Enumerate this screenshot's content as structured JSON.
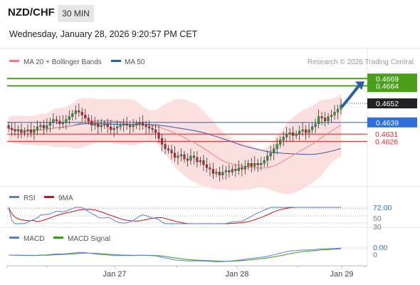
{
  "header": {
    "pair": "NZD/CHF",
    "interval": "30 MIN",
    "datetime": "Wednesday, January 28, 2026 9:20:57 PM CET"
  },
  "legend": {
    "ma20_label": "MA 20 + Bollinger Bands",
    "ma50_label": "MA 50",
    "ma20_color": "#f08080",
    "ma50_color": "#2e5aa0",
    "copyright": "Research © 2026 Trading Central"
  },
  "rsi_panel": {
    "rsi_label": "RSI",
    "ma9_label": "9MA",
    "rsi_color": "#5b7fd6",
    "ma9_color": "#d01010",
    "levels": [
      "72.00",
      "70",
      "50",
      "30"
    ]
  },
  "macd_panel": {
    "macd_label": "MACD",
    "signal_label": "MACD Signal",
    "macd_color": "#5b7fd6",
    "signal_color": "#3a9a1a",
    "value_label": "0.00",
    "zero_label": "0"
  },
  "chart_data": {
    "type": "candlestick",
    "symbol": "NZD/CHF",
    "interval": "30 MIN",
    "x_tick_labels": [
      "Jan 27",
      "Jan 28",
      "Jan 29"
    ],
    "ylim": [
      0.4596,
      0.4674
    ],
    "levels": [
      {
        "label": "0.4669",
        "value": 0.4669,
        "kind": "resistance",
        "color": "#4aa01a"
      },
      {
        "label": "0.4664",
        "value": 0.4664,
        "kind": "resistance",
        "color": "#4aa01a"
      },
      {
        "label": "0.4652",
        "value": 0.4652,
        "kind": "last-price",
        "color": "#222222"
      },
      {
        "label": "0.4639",
        "value": 0.4639,
        "kind": "pivot",
        "color": "#2f6fdc"
      },
      {
        "label": "0.4631",
        "value": 0.4631,
        "kind": "support",
        "color": "#e03030"
      },
      {
        "label": "0.4626",
        "value": 0.4626,
        "kind": "support",
        "color": "#e03030"
      }
    ],
    "close_series": [
      0.4635,
      0.4634,
      0.4633,
      0.4634,
      0.4632,
      0.4633,
      0.4634,
      0.4632,
      0.4634,
      0.4636,
      0.4637,
      0.4635,
      0.4637,
      0.4639,
      0.4641,
      0.464,
      0.4638,
      0.4639,
      0.4641,
      0.4643,
      0.4645,
      0.4647,
      0.4646,
      0.4644,
      0.4642,
      0.464,
      0.4637,
      0.4638,
      0.4636,
      0.4637,
      0.4638,
      0.4636,
      0.4634,
      0.4635,
      0.4636,
      0.4637,
      0.4638,
      0.4637,
      0.4636,
      0.4637,
      0.4638,
      0.4639,
      0.4637,
      0.4636,
      0.4635,
      0.4634,
      0.4632,
      0.4628,
      0.4624,
      0.4621,
      0.462,
      0.4618,
      0.4615,
      0.4616,
      0.4617,
      0.4614,
      0.4613,
      0.4616,
      0.4615,
      0.4612,
      0.4613,
      0.461,
      0.4608,
      0.4607,
      0.4604,
      0.4605,
      0.4603,
      0.4605,
      0.4606,
      0.4605,
      0.4607,
      0.4606,
      0.4608,
      0.4607,
      0.4609,
      0.4611,
      0.4609,
      0.4611,
      0.461,
      0.4611,
      0.4613,
      0.4616,
      0.4618,
      0.4621,
      0.4624,
      0.4627,
      0.4629,
      0.4631,
      0.4632,
      0.463,
      0.4631,
      0.4633,
      0.4634,
      0.4632,
      0.4634,
      0.4636,
      0.4638,
      0.4643,
      0.4642,
      0.464,
      0.4643,
      0.4644,
      0.4646,
      0.4648,
      0.4651
    ],
    "trend_arrow": {
      "from_value": 0.465,
      "to_value": 0.4666,
      "direction": "up"
    },
    "rsi_levels": [
      72,
      70,
      50,
      30
    ],
    "macd_zero": 0
  }
}
